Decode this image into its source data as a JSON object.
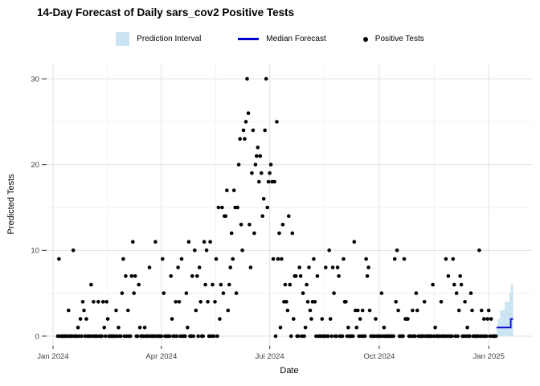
{
  "title": "14-Day Forecast of Daily sars_cov2 Positive Tests",
  "legend": {
    "items": [
      {
        "label": "Prediction Interval",
        "type": "box",
        "color": "#CBE4F2"
      },
      {
        "label": "Median Forecast",
        "type": "line",
        "color": "#0000CC"
      },
      {
        "label": "Positive Tests",
        "type": "point",
        "color": "#000000"
      }
    ]
  },
  "chart_data": {
    "type": "scatter",
    "title": "14-Day Forecast of Daily sars_cov2 Positive Tests",
    "xlabel": "Date",
    "ylabel": "Predicted Tests",
    "epoch": "2024-01-01",
    "x_domain_days": [
      -5.4,
      402.3
    ],
    "y_domain": [
      -1.13,
      31.88
    ],
    "x_ticks": [
      {
        "day": 0,
        "label": "Jan 2024"
      },
      {
        "day": 91,
        "label": "Apr 2024"
      },
      {
        "day": 182,
        "label": "Jul 2024"
      },
      {
        "day": 274,
        "label": "Oct 2024"
      },
      {
        "day": 366,
        "label": "Jan 2025"
      }
    ],
    "x_minor_days": [
      45.5,
      136.5,
      228,
      320
    ],
    "y_ticks": [
      0,
      10,
      20,
      30
    ],
    "y_minor_ticks": [
      5,
      15,
      25
    ],
    "grid": true,
    "legend_position": "top",
    "observed": {
      "start_day": 4,
      "values": [
        0,
        9,
        0,
        0,
        0,
        0,
        0,
        0,
        0,
        3,
        0,
        0,
        0,
        10,
        0,
        0,
        0,
        1,
        0,
        2,
        0,
        4,
        3,
        0,
        2,
        0,
        0,
        0,
        6,
        0,
        4,
        0,
        0,
        0,
        4,
        0,
        0,
        0,
        4,
        1,
        0,
        4,
        2,
        0,
        0,
        0,
        0,
        0,
        0,
        3,
        0,
        1,
        0,
        0,
        5,
        9,
        0,
        7,
        0,
        3,
        0,
        0,
        7,
        11,
        5,
        7,
        0,
        0,
        6,
        1,
        0,
        0,
        0,
        1,
        0,
        0,
        0,
        8,
        0,
        0,
        0,
        0,
        11,
        0,
        0,
        0,
        0,
        0,
        9,
        5,
        0,
        0,
        0,
        0,
        0,
        7,
        2,
        0,
        0,
        4,
        0,
        8,
        4,
        0,
        9,
        0,
        0,
        0,
        5,
        1,
        11,
        0,
        0,
        7,
        0,
        10,
        3,
        7,
        0,
        8,
        4,
        0,
        0,
        11,
        6,
        10,
        4,
        0,
        11,
        0,
        6,
        0,
        4,
        9,
        0,
        15,
        2,
        6,
        15,
        5,
        14,
        14,
        17,
        3,
        6,
        8,
        12,
        9,
        17,
        15,
        5,
        15,
        20,
        23,
        13,
        10,
        24,
        23,
        25,
        30,
        26,
        13,
        8,
        19,
        24,
        12,
        20,
        21,
        22,
        18,
        21,
        19,
        14,
        16,
        24,
        30,
        15,
        18,
        19,
        20,
        18,
        9,
        18,
        0,
        25,
        9,
        12,
        1,
        9,
        13,
        4,
        6,
        4,
        3,
        14,
        6,
        0,
        12,
        2,
        7,
        7,
        0,
        0,
        8,
        7,
        0,
        5,
        0,
        1,
        6,
        4,
        8,
        3,
        2,
        4,
        9,
        4,
        0,
        7,
        0,
        0,
        0,
        2,
        0,
        0,
        8,
        0,
        0,
        10,
        2,
        0,
        8,
        5,
        0,
        0,
        8,
        7,
        0,
        0,
        0,
        9,
        4,
        4,
        0,
        1,
        0,
        0,
        0,
        0,
        11,
        3,
        1,
        3,
        0,
        2,
        0,
        3,
        0,
        0,
        9,
        7,
        8,
        3,
        0,
        0,
        0,
        0,
        2,
        0,
        0,
        0,
        0,
        5,
        0,
        1,
        0,
        0,
        0,
        0,
        0,
        0,
        0,
        0,
        9,
        4,
        10,
        3,
        0,
        0,
        0,
        0,
        9,
        2,
        2,
        2,
        0,
        0,
        0,
        3,
        0,
        0,
        5,
        3,
        0,
        0,
        0,
        0,
        0,
        4,
        0,
        0,
        0,
        0,
        0,
        0,
        6,
        0,
        1,
        0,
        0,
        0,
        0,
        4,
        0,
        0,
        0,
        9,
        0,
        7,
        0,
        0,
        0,
        9,
        6,
        0,
        5,
        0,
        3,
        7,
        6,
        0,
        0,
        4,
        0,
        1,
        0,
        0,
        5,
        3,
        0,
        0,
        0,
        0,
        0,
        10,
        0,
        3,
        0,
        2,
        0,
        0,
        2,
        3,
        0,
        2,
        0,
        0,
        0,
        0
      ]
    },
    "forecast": {
      "start_day": 373,
      "days": 14,
      "median": [
        1,
        1,
        1,
        1,
        1,
        1,
        1,
        1,
        1,
        1,
        1,
        1,
        2,
        2
      ],
      "upper": [
        1,
        2,
        2,
        3,
        3,
        3,
        3,
        4,
        4,
        4,
        4,
        5,
        6,
        6
      ],
      "lower": [
        0,
        0,
        0,
        0,
        0,
        0,
        0,
        0,
        0,
        0,
        0,
        0,
        0,
        0
      ]
    },
    "colors": {
      "point": "#000000",
      "median_line": "#0000CC",
      "interval_fill": "#CBE4F2",
      "grid_major": "#E2E2E2",
      "grid_minor": "#F0F0F0",
      "tick_mark": "#333333",
      "tick_text": "#404040",
      "text": "#000000",
      "background": "#FFFFFF"
    }
  }
}
